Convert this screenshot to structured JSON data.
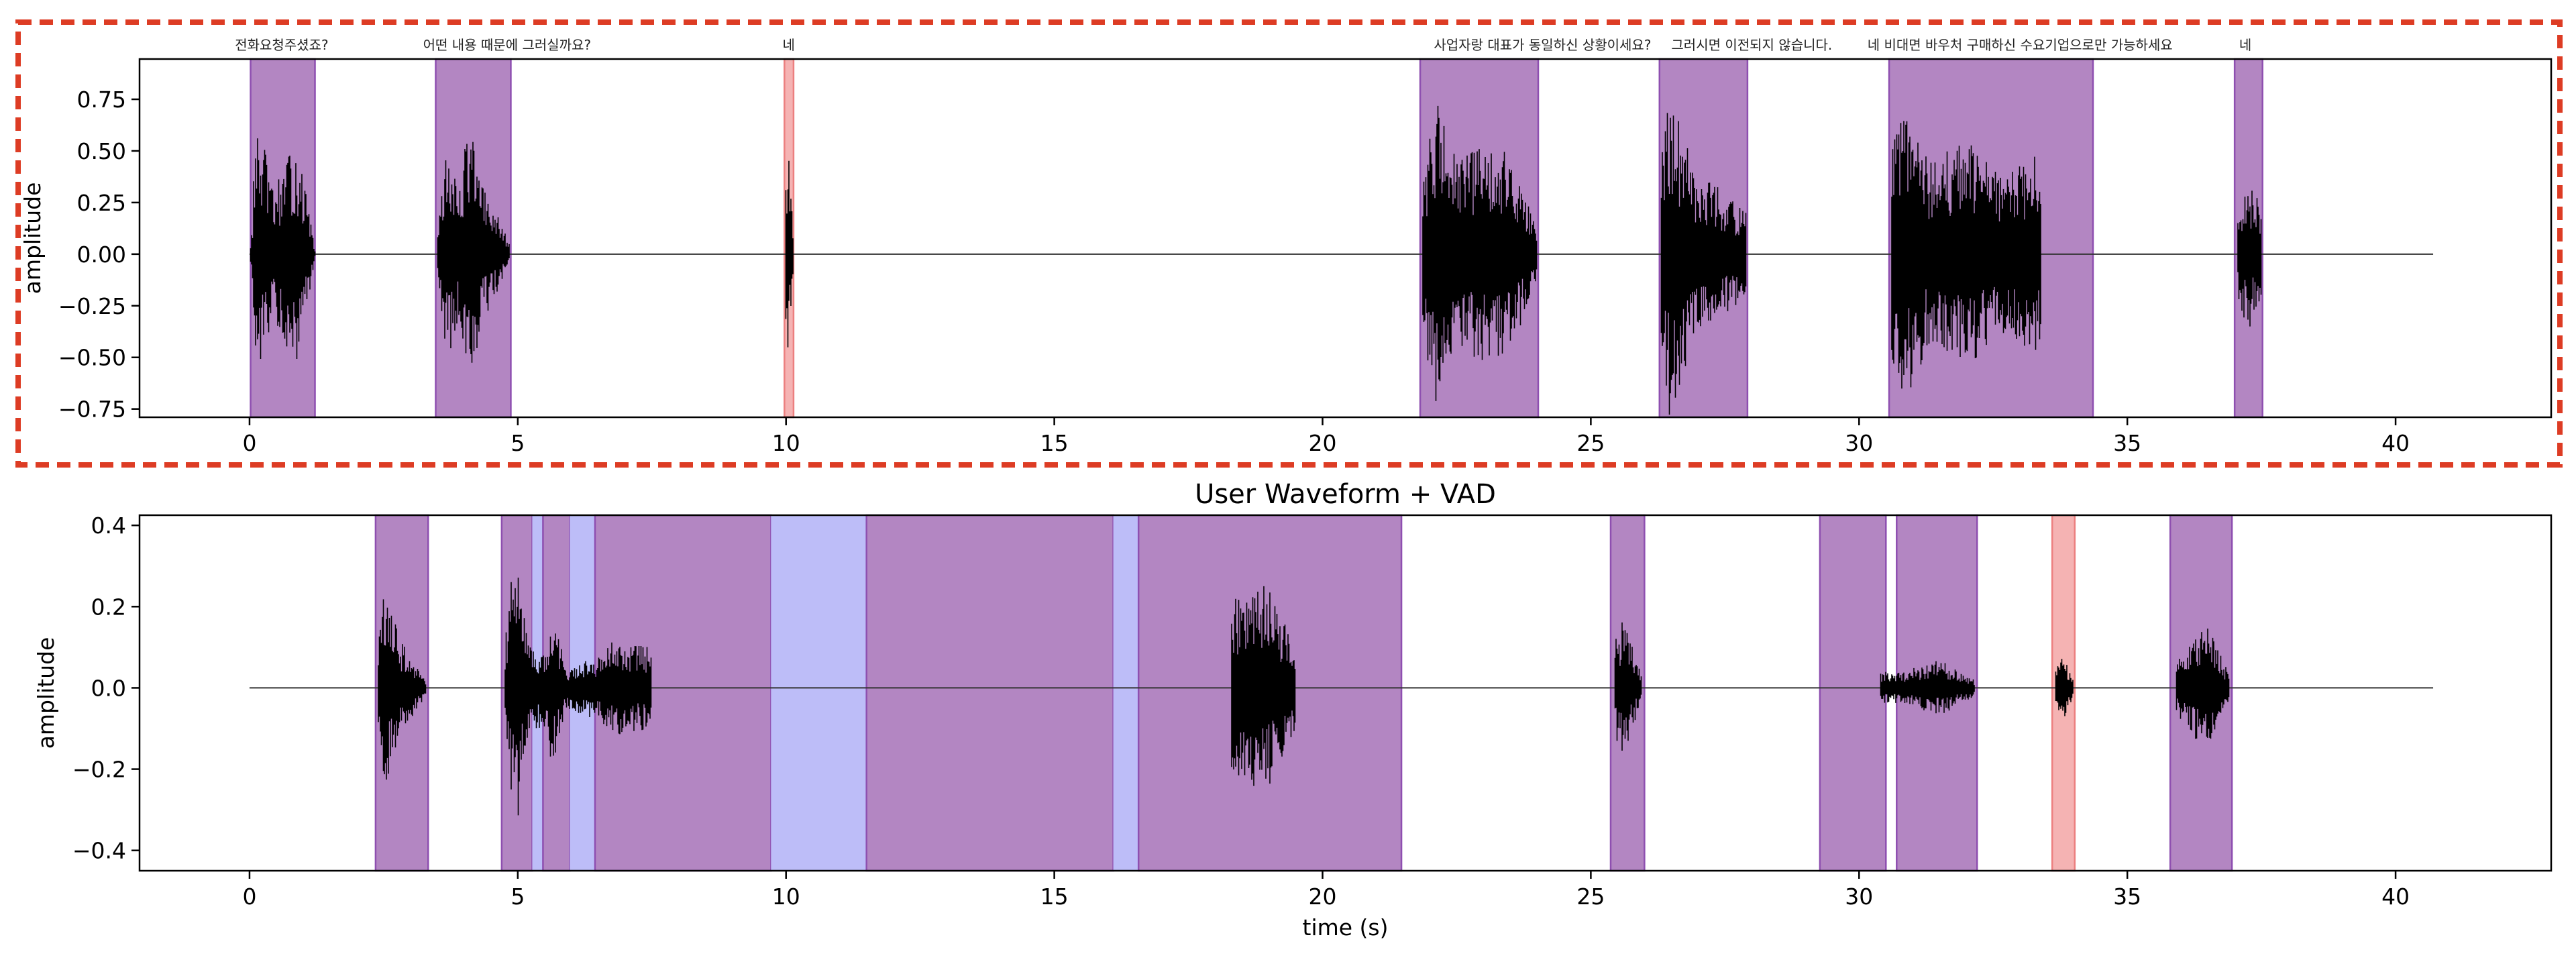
{
  "chart_data": [
    {
      "type": "area",
      "title": "",
      "xlabel": "",
      "ylabel": "amplitude",
      "xlim": [
        -2.05,
        42.9
      ],
      "ylim": [
        -0.79,
        0.945
      ],
      "xticks": [
        0,
        5,
        10,
        15,
        20,
        25,
        30,
        35,
        40
      ],
      "yticks": [
        -0.75,
        -0.5,
        -0.25,
        0.0,
        0.25,
        0.5,
        0.75
      ],
      "ytick_labels": [
        "−0.75",
        "−0.50",
        "−0.25",
        "0.00",
        "0.25",
        "0.50",
        "0.75"
      ],
      "highlighted": true,
      "colors": {
        "speech": "#b386c2",
        "speech_edge": "#8e4fb0",
        "short": "#f5b3b3",
        "short_edge": "#ec7f7f",
        "wave": "#000000"
      },
      "segments": [
        {
          "start": 0.02,
          "end": 1.22,
          "kind": "speech"
        },
        {
          "start": 3.47,
          "end": 4.87,
          "kind": "speech"
        },
        {
          "start": 9.97,
          "end": 10.14,
          "kind": "short"
        },
        {
          "start": 21.82,
          "end": 24.02,
          "kind": "speech"
        },
        {
          "start": 26.28,
          "end": 27.92,
          "kind": "speech"
        },
        {
          "start": 30.56,
          "end": 34.36,
          "kind": "speech"
        },
        {
          "start": 37.0,
          "end": 37.52,
          "kind": "speech"
        }
      ],
      "transcripts": [
        {
          "x": 0.6,
          "text": "전화요청주셨죠?"
        },
        {
          "x": 4.8,
          "text": "어떤  내용  때문에  그러실까요?"
        },
        {
          "x": 10.05,
          "text": "네"
        },
        {
          "x": 24.1,
          "text": "사업자랑  대표가  동일하신  상황이세요?"
        },
        {
          "x": 28.0,
          "text": "그러시면  이전되지  않습니다."
        },
        {
          "x": 33.0,
          "text": "네  비대면  바우처  구매하신  수요기업으로만  가능하세요"
        },
        {
          "x": 37.2,
          "text": "네"
        }
      ],
      "amplitude_envelope": [
        {
          "x": 0.0,
          "y": 0.0
        },
        {
          "x": 0.05,
          "y": 0.15
        },
        {
          "x": 0.1,
          "y": 0.58
        },
        {
          "x": 0.25,
          "y": 0.55
        },
        {
          "x": 0.45,
          "y": 0.3
        },
        {
          "x": 0.65,
          "y": 0.45
        },
        {
          "x": 0.9,
          "y": 0.52
        },
        {
          "x": 1.1,
          "y": 0.22
        },
        {
          "x": 1.22,
          "y": 0.02
        },
        {
          "x": 3.5,
          "y": 0.12
        },
        {
          "x": 3.7,
          "y": 0.55
        },
        {
          "x": 3.9,
          "y": 0.3
        },
        {
          "x": 4.1,
          "y": 0.7
        },
        {
          "x": 4.3,
          "y": 0.35
        },
        {
          "x": 4.6,
          "y": 0.2
        },
        {
          "x": 4.85,
          "y": 0.05
        },
        {
          "x": 9.98,
          "y": 0.3
        },
        {
          "x": 10.04,
          "y": 0.55
        },
        {
          "x": 10.13,
          "y": 0.15
        },
        {
          "x": 21.85,
          "y": 0.3
        },
        {
          "x": 22.1,
          "y": 0.78
        },
        {
          "x": 22.5,
          "y": 0.45
        },
        {
          "x": 23.0,
          "y": 0.55
        },
        {
          "x": 23.5,
          "y": 0.48
        },
        {
          "x": 24.0,
          "y": 0.12
        },
        {
          "x": 26.3,
          "y": 0.42
        },
        {
          "x": 26.45,
          "y": 0.82
        },
        {
          "x": 26.9,
          "y": 0.45
        },
        {
          "x": 27.4,
          "y": 0.32
        },
        {
          "x": 27.9,
          "y": 0.2
        },
        {
          "x": 30.6,
          "y": 0.55
        },
        {
          "x": 30.85,
          "y": 0.72
        },
        {
          "x": 31.3,
          "y": 0.45
        },
        {
          "x": 32.0,
          "y": 0.55
        },
        {
          "x": 32.7,
          "y": 0.38
        },
        {
          "x": 33.4,
          "y": 0.5
        },
        {
          "x": 34.3,
          "y": 0.15
        },
        {
          "x": 37.05,
          "y": 0.2
        },
        {
          "x": 37.25,
          "y": 0.38
        },
        {
          "x": 37.5,
          "y": 0.22
        }
      ]
    },
    {
      "type": "area",
      "title": "User Waveform + VAD",
      "xlabel": "time (s)",
      "ylabel": "amplitude",
      "xlim": [
        -2.05,
        42.9
      ],
      "ylim": [
        -0.45,
        0.425
      ],
      "xticks": [
        0,
        5,
        10,
        15,
        20,
        25,
        30,
        35,
        40
      ],
      "yticks": [
        -0.4,
        -0.2,
        0.0,
        0.2,
        0.4
      ],
      "ytick_labels": [
        "−0.4",
        "−0.2",
        "0.0",
        "0.2",
        "0.4"
      ],
      "highlighted": false,
      "colors": {
        "speech": "#b386c2",
        "speech_edge": "#8e4fb0",
        "short": "#f5b3b3",
        "short_edge": "#ec7f7f",
        "gap": "#bdbdf8",
        "wave": "#000000"
      },
      "segments": [
        {
          "start": 2.35,
          "end": 3.33,
          "kind": "speech"
        },
        {
          "start": 4.7,
          "end": 5.27,
          "kind": "speech"
        },
        {
          "start": 5.27,
          "end": 5.47,
          "kind": "gap"
        },
        {
          "start": 5.47,
          "end": 5.97,
          "kind": "speech"
        },
        {
          "start": 5.97,
          "end": 6.44,
          "kind": "gap"
        },
        {
          "start": 6.44,
          "end": 9.72,
          "kind": "speech"
        },
        {
          "start": 9.72,
          "end": 11.5,
          "kind": "gap"
        },
        {
          "start": 11.5,
          "end": 16.1,
          "kind": "speech"
        },
        {
          "start": 16.1,
          "end": 16.57,
          "kind": "gap"
        },
        {
          "start": 16.57,
          "end": 21.47,
          "kind": "speech"
        },
        {
          "start": 25.37,
          "end": 26.0,
          "kind": "speech"
        },
        {
          "start": 29.27,
          "end": 30.5,
          "kind": "speech"
        },
        {
          "start": 30.7,
          "end": 32.2,
          "kind": "speech"
        },
        {
          "start": 33.6,
          "end": 34.02,
          "kind": "short"
        },
        {
          "start": 35.8,
          "end": 36.95,
          "kind": "speech"
        }
      ],
      "amplitude_envelope": [
        {
          "x": 2.4,
          "y": 0.1
        },
        {
          "x": 2.5,
          "y": 0.27
        },
        {
          "x": 2.8,
          "y": 0.12
        },
        {
          "x": 3.3,
          "y": 0.02
        },
        {
          "x": 4.75,
          "y": 0.1
        },
        {
          "x": 4.97,
          "y": 0.38
        },
        {
          "x": 5.2,
          "y": 0.1
        },
        {
          "x": 5.55,
          "y": 0.1
        },
        {
          "x": 5.63,
          "y": 0.22
        },
        {
          "x": 5.9,
          "y": 0.05
        },
        {
          "x": 6.5,
          "y": 0.08
        },
        {
          "x": 6.8,
          "y": 0.12
        },
        {
          "x": 7.5,
          "y": 0.1
        },
        {
          "x": 8.5,
          "y": 0.09
        },
        {
          "x": 9.5,
          "y": 0.07
        },
        {
          "x": 11.6,
          "y": 0.1
        },
        {
          "x": 12.5,
          "y": 0.11
        },
        {
          "x": 13.5,
          "y": 0.18
        },
        {
          "x": 14.5,
          "y": 0.12
        },
        {
          "x": 15.8,
          "y": 0.09
        },
        {
          "x": 16.7,
          "y": 0.25
        },
        {
          "x": 17.5,
          "y": 0.14
        },
        {
          "x": 18.3,
          "y": 0.22
        },
        {
          "x": 18.9,
          "y": 0.27
        },
        {
          "x": 19.5,
          "y": 0.1
        },
        {
          "x": 20.5,
          "y": 0.08
        },
        {
          "x": 21.4,
          "y": 0.03
        },
        {
          "x": 25.45,
          "y": 0.12
        },
        {
          "x": 25.6,
          "y": 0.17
        },
        {
          "x": 25.95,
          "y": 0.03
        },
        {
          "x": 29.35,
          "y": 0.04
        },
        {
          "x": 30.4,
          "y": 0.04
        },
        {
          "x": 30.8,
          "y": 0.04
        },
        {
          "x": 31.5,
          "y": 0.07
        },
        {
          "x": 32.15,
          "y": 0.02
        },
        {
          "x": 33.65,
          "y": 0.05
        },
        {
          "x": 33.8,
          "y": 0.08
        },
        {
          "x": 34.0,
          "y": 0.02
        },
        {
          "x": 35.9,
          "y": 0.06
        },
        {
          "x": 36.5,
          "y": 0.17
        },
        {
          "x": 36.9,
          "y": 0.03
        }
      ]
    }
  ]
}
